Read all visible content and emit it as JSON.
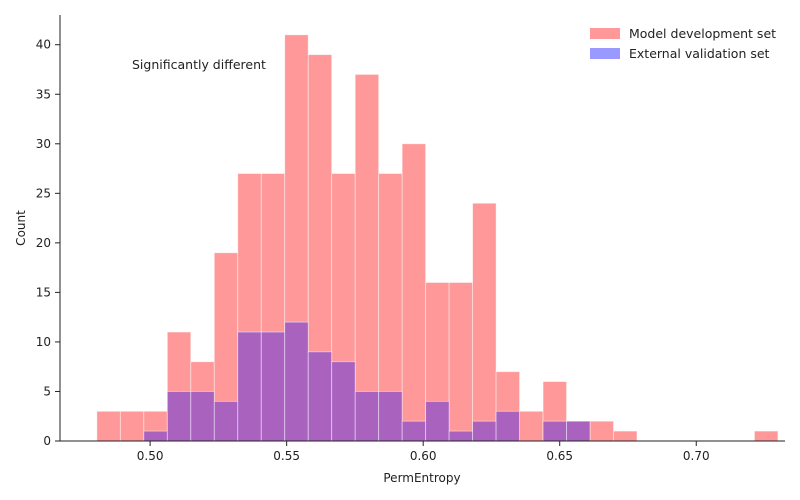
{
  "chart_data": {
    "type": "bar",
    "subtype": "overlaid-histogram",
    "title": "",
    "xlabel": "PermEntropy",
    "ylabel": "Count",
    "xlim": [
      0.467,
      0.7325
    ],
    "ylim": [
      0,
      43
    ],
    "xticks": [
      0.5,
      0.55,
      0.6,
      0.65,
      0.7
    ],
    "xtick_labels": [
      "0.50",
      "0.55",
      "0.60",
      "0.65",
      "0.70"
    ],
    "yticks": [
      0,
      5,
      10,
      15,
      20,
      25,
      30,
      35,
      40
    ],
    "ytick_labels": [
      "0",
      "5",
      "10",
      "15",
      "20",
      "25",
      "30",
      "35",
      "40"
    ],
    "grid": false,
    "legend_position": "top-right",
    "annotation": "Significantly different",
    "bin_width": 0.0086,
    "series": [
      {
        "name": "Model development set",
        "color": "#ff9999",
        "bins": [
          {
            "x": 0.4805,
            "count": 3
          },
          {
            "x": 0.4891,
            "count": 3
          },
          {
            "x": 0.4977,
            "count": 3
          },
          {
            "x": 0.5063,
            "count": 11
          },
          {
            "x": 0.5149,
            "count": 8
          },
          {
            "x": 0.5235,
            "count": 19
          },
          {
            "x": 0.5321,
            "count": 27
          },
          {
            "x": 0.5407,
            "count": 27
          },
          {
            "x": 0.5493,
            "count": 41
          },
          {
            "x": 0.5579,
            "count": 39
          },
          {
            "x": 0.5665,
            "count": 27
          },
          {
            "x": 0.5751,
            "count": 37
          },
          {
            "x": 0.5837,
            "count": 27
          },
          {
            "x": 0.5923,
            "count": 30
          },
          {
            "x": 0.6009,
            "count": 16
          },
          {
            "x": 0.6095,
            "count": 16
          },
          {
            "x": 0.6181,
            "count": 24
          },
          {
            "x": 0.6267,
            "count": 7
          },
          {
            "x": 0.6353,
            "count": 3
          },
          {
            "x": 0.6439,
            "count": 6
          },
          {
            "x": 0.6525,
            "count": 2
          },
          {
            "x": 0.6611,
            "count": 2
          },
          {
            "x": 0.6697,
            "count": 1
          },
          {
            "x": 0.7213,
            "count": 1
          }
        ]
      },
      {
        "name": "External validation set",
        "color": "#9999ff",
        "bins": [
          {
            "x": 0.4977,
            "count": 1
          },
          {
            "x": 0.5063,
            "count": 5
          },
          {
            "x": 0.5149,
            "count": 5
          },
          {
            "x": 0.5235,
            "count": 4
          },
          {
            "x": 0.5321,
            "count": 11
          },
          {
            "x": 0.5407,
            "count": 11
          },
          {
            "x": 0.5493,
            "count": 12
          },
          {
            "x": 0.5579,
            "count": 9
          },
          {
            "x": 0.5665,
            "count": 8
          },
          {
            "x": 0.5751,
            "count": 5
          },
          {
            "x": 0.5837,
            "count": 5
          },
          {
            "x": 0.5923,
            "count": 2
          },
          {
            "x": 0.6009,
            "count": 4
          },
          {
            "x": 0.6095,
            "count": 1
          },
          {
            "x": 0.6181,
            "count": 2
          },
          {
            "x": 0.6267,
            "count": 3
          },
          {
            "x": 0.6353,
            "count": 0
          },
          {
            "x": 0.6439,
            "count": 2
          },
          {
            "x": 0.6525,
            "count": 2
          }
        ]
      }
    ]
  }
}
